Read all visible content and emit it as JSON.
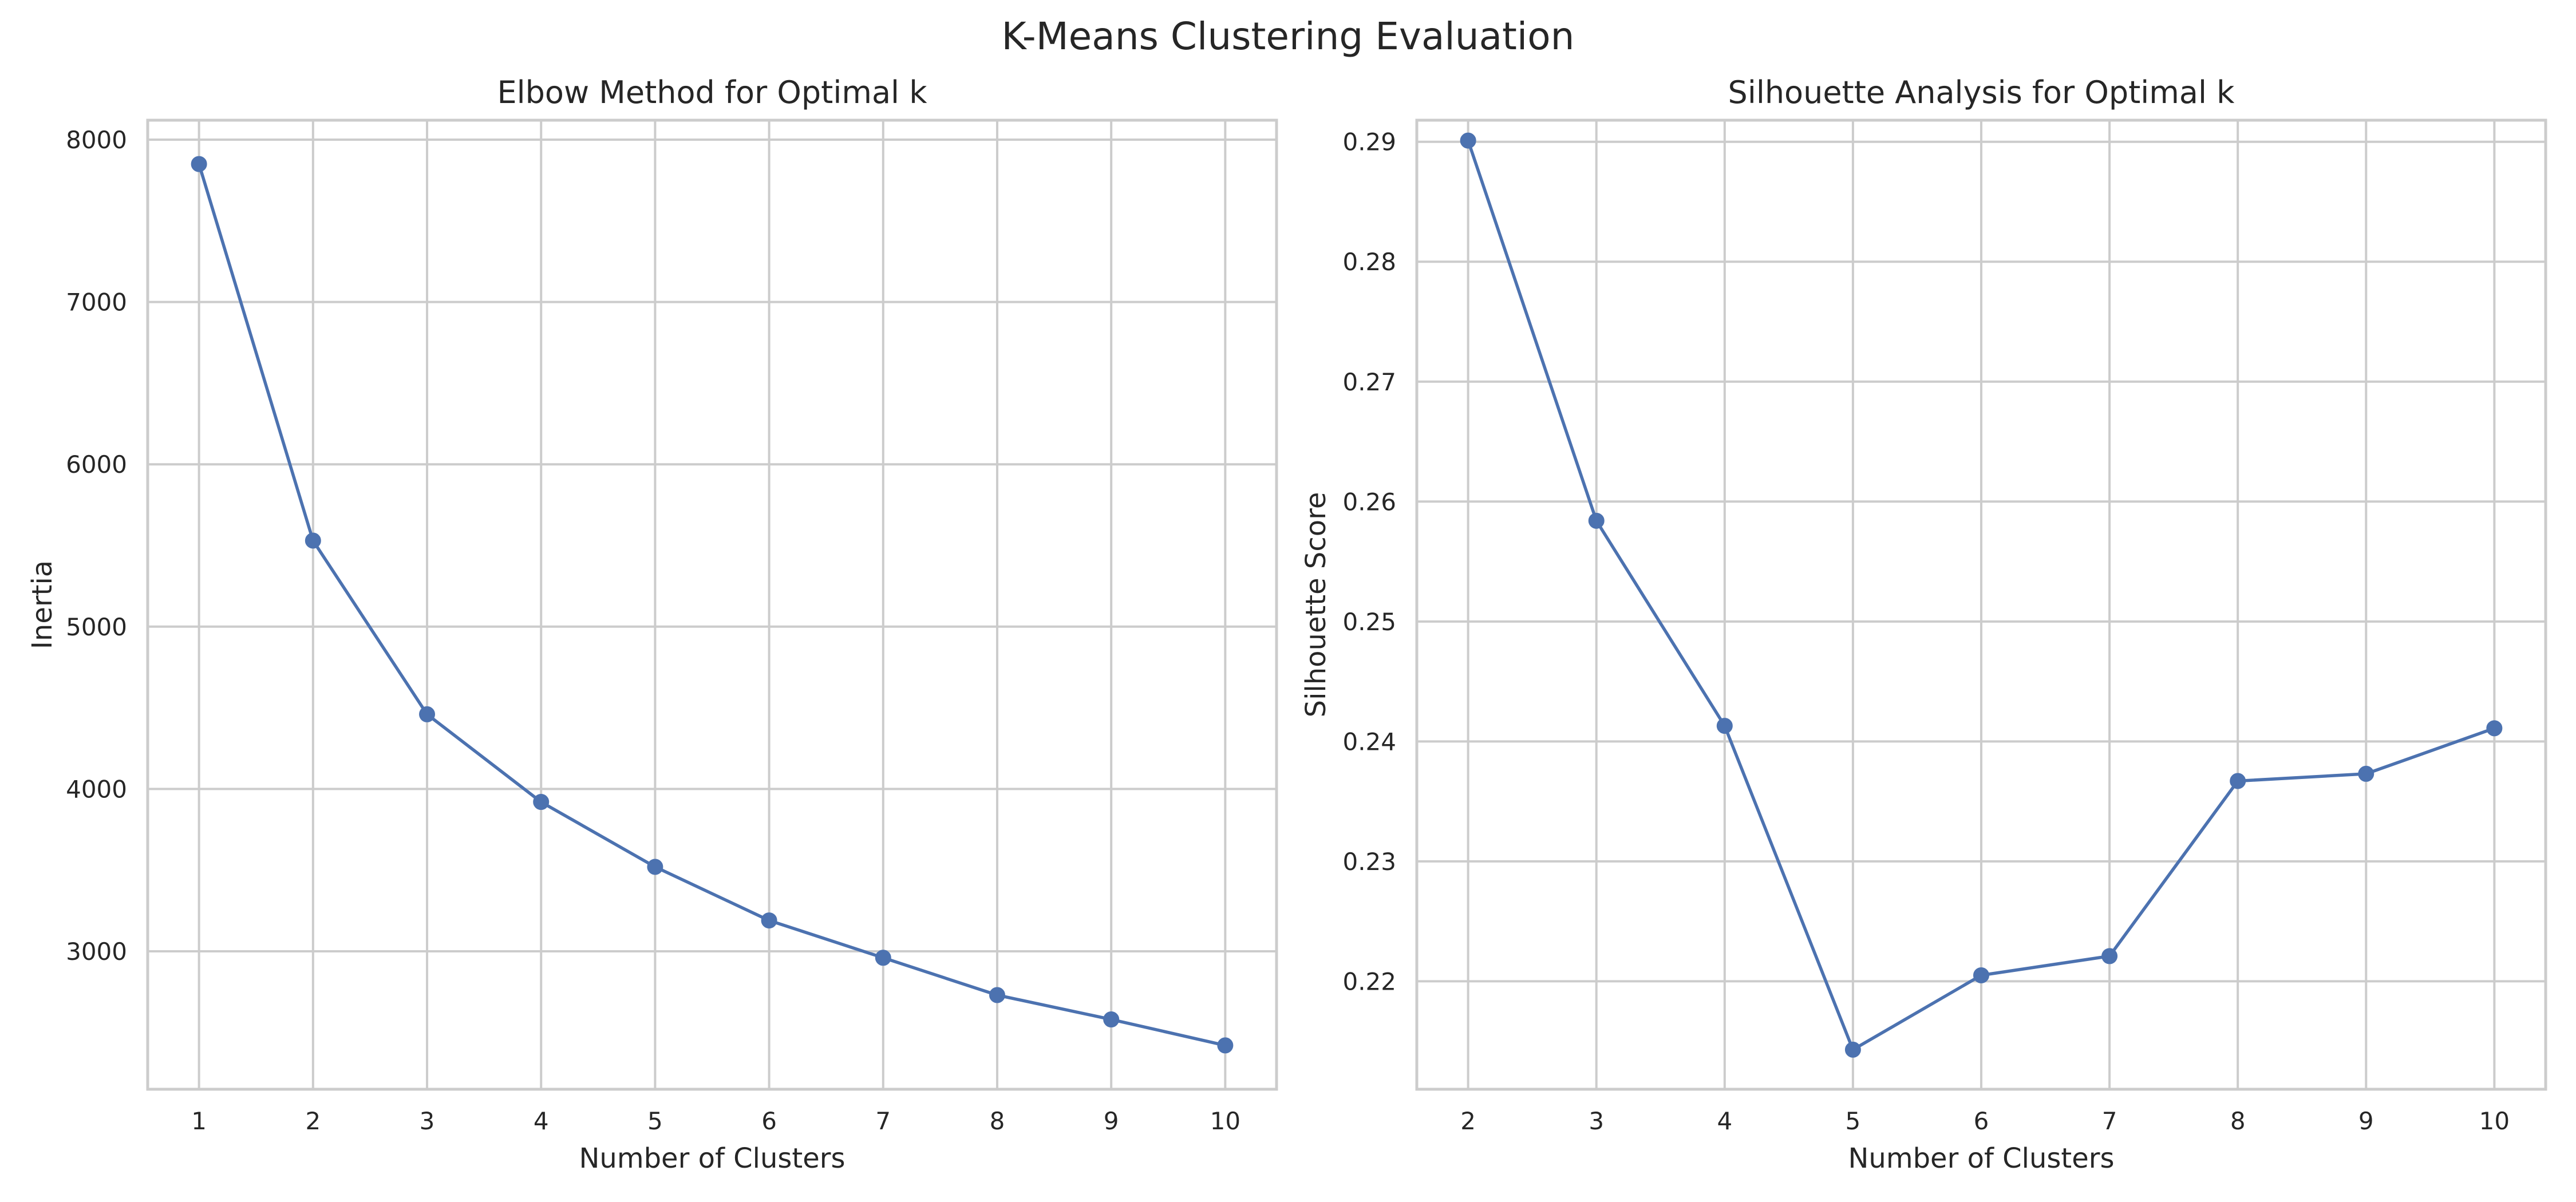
{
  "figure": {
    "title": "K-Means Clustering Evaluation",
    "line_color": "#4c72b0",
    "grid_color": "#cccccc"
  },
  "chart_data": [
    {
      "type": "line",
      "title": "Elbow Method for Optimal k",
      "xlabel": "Number of Clusters",
      "ylabel": "Inertia",
      "x": [
        1,
        2,
        3,
        4,
        5,
        6,
        7,
        8,
        9,
        10
      ],
      "series": [
        {
          "values": [
            7850,
            5530,
            4460,
            3920,
            3520,
            3190,
            2960,
            2730,
            2580,
            2420
          ]
        }
      ],
      "xticks": [
        1,
        2,
        3,
        4,
        5,
        6,
        7,
        8,
        9,
        10
      ],
      "yticks": [
        3000,
        4000,
        5000,
        6000,
        7000,
        8000
      ],
      "xlim": [
        0.55,
        10.45
      ],
      "ylim": [
        2150,
        8120
      ],
      "marker": "circle",
      "grid": true
    },
    {
      "type": "line",
      "title": "Silhouette Analysis for Optimal k",
      "xlabel": "Number of Clusters",
      "ylabel": "Silhouette Score",
      "x": [
        2,
        3,
        4,
        5,
        6,
        7,
        8,
        9,
        10
      ],
      "series": [
        {
          "values": [
            0.2901,
            0.2584,
            0.2413,
            0.2143,
            0.2205,
            0.2221,
            0.2367,
            0.2373,
            0.2411
          ]
        }
      ],
      "xticks": [
        2,
        3,
        4,
        5,
        6,
        7,
        8,
        9,
        10
      ],
      "yticks": [
        0.22,
        0.23,
        0.24,
        0.25,
        0.26,
        0.27,
        0.28,
        0.29
      ],
      "ylim": [
        2110,
        2918
      ],
      "xlim": [
        1.6,
        10.4
      ],
      "marker": "circle",
      "grid": true
    }
  ]
}
